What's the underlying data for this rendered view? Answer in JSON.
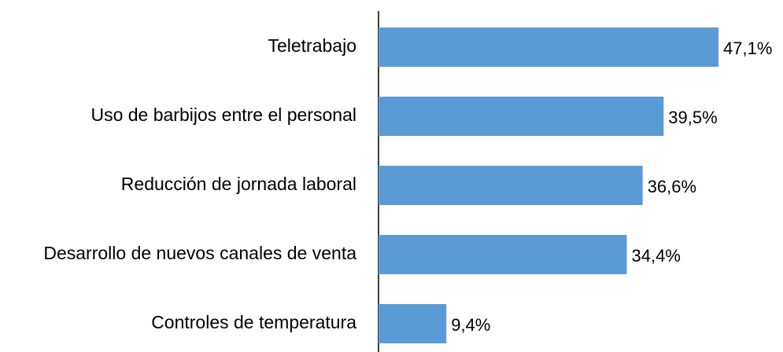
{
  "chart_data": {
    "type": "bar",
    "orientation": "horizontal",
    "categories": [
      "Teletrabajo",
      "Uso de barbijos entre el personal",
      "Reducción de jornada laboral",
      "Desarrollo de nuevos canales de venta",
      "Controles de temperatura"
    ],
    "values": [
      47.1,
      39.5,
      36.6,
      34.4,
      9.4
    ],
    "value_labels": [
      "47,1%",
      "39,5%",
      "36,6%",
      "34,4%",
      "9,4%"
    ],
    "color": "#5b9bd5"
  }
}
